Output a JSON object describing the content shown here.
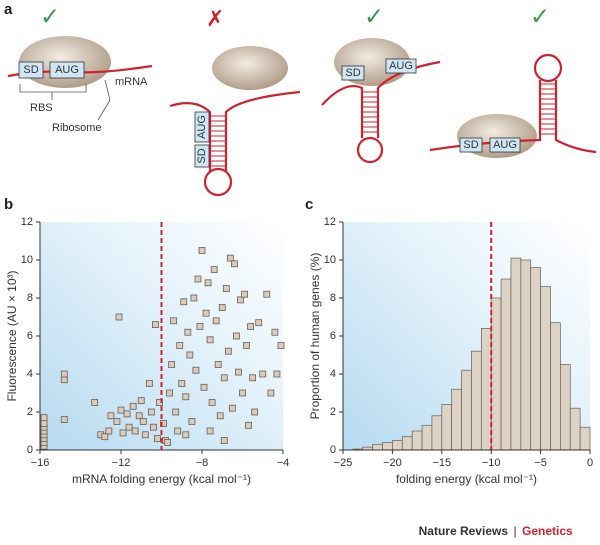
{
  "panel_labels": [
    "a",
    "b",
    "c"
  ],
  "diagram": {
    "marks": [
      "✓",
      "✗",
      "✓",
      "✓"
    ],
    "sd": "SD",
    "aug": "AUG",
    "mrna": "mRNA",
    "rbs": "RBS",
    "ribosome": "Ribosome"
  },
  "chart_data": [
    {
      "type": "scatter",
      "xlabel": "mRNA folding energy (kcal mol⁻¹)",
      "ylabel": "Fluorescence (AU × 10³)",
      "color": "#d8ccbf",
      "xlim": [
        -16,
        -4
      ],
      "xticks": [
        {
          "value": -16,
          "label": "−16"
        },
        {
          "value": -12,
          "label": "−12"
        },
        {
          "value": -8,
          "label": "−8"
        },
        {
          "value": -4,
          "label": "−4"
        }
      ],
      "ylim": [
        0,
        12
      ],
      "yticks": [
        0,
        2,
        4,
        6,
        8,
        10,
        12
      ],
      "vline": -10,
      "x": [
        -15.8,
        -15.8,
        -15.8,
        -15.8,
        -15.8,
        -15.8,
        -15.8,
        -15.8,
        -14.8,
        -14.8,
        -14.8,
        -13.3,
        -13,
        -12.8,
        -12.6,
        -12.5,
        -12.2,
        -12.1,
        -12,
        -11.9,
        -11.7,
        -11.6,
        -11.4,
        -11.3,
        -11.1,
        -11,
        -10.9,
        -10.8,
        -10.6,
        -10.5,
        -10.4,
        -10.3,
        -10.2,
        -10.1,
        -9.9,
        -9.8,
        -9.7,
        -9.6,
        -9.5,
        -9.4,
        -9.3,
        -9.2,
        -9.1,
        -9.0,
        -8.9,
        -8.8,
        -8.7,
        -8.6,
        -8.5,
        -8.4,
        -8.3,
        -8.2,
        -8.1,
        -8.0,
        -7.9,
        -7.8,
        -7.7,
        -7.6,
        -7.5,
        -7.4,
        -7.3,
        -7.2,
        -7.1,
        -7.0,
        -6.9,
        -6.8,
        -6.7,
        -6.6,
        -6.5,
        -6.4,
        -6.3,
        -6.2,
        -6.1,
        -6.0,
        -5.9,
        -5.8,
        -5.7,
        -5.6,
        -5.5,
        -5.4,
        -5.2,
        -5.0,
        -4.8,
        -4.6,
        -4.4,
        -4.3,
        -4.1,
        -6.9,
        -7.6,
        -8.8
      ],
      "values": [
        0.2,
        0.4,
        0.6,
        0.8,
        1.0,
        1.2,
        1.4,
        1.7,
        3.7,
        4.0,
        1.6,
        2.5,
        0.8,
        0.7,
        1.0,
        1.8,
        1.5,
        7.0,
        2.1,
        0.9,
        1.9,
        1.2,
        2.3,
        1.0,
        1.8,
        2.6,
        1.5,
        0.8,
        3.5,
        2.0,
        1.2,
        6.6,
        0.6,
        2.5,
        1.4,
        0.5,
        0.4,
        3.0,
        4.5,
        6.8,
        2.0,
        1.0,
        5.5,
        3.5,
        7.8,
        2.8,
        6.2,
        5.0,
        1.5,
        8.0,
        4.2,
        9.0,
        6.5,
        10.5,
        3.3,
        7.2,
        8.8,
        5.8,
        2.5,
        9.5,
        6.8,
        4.5,
        1.8,
        7.5,
        3.8,
        8.5,
        5.2,
        10.1,
        2.2,
        9.8,
        6.0,
        4.1,
        7.9,
        3.0,
        8.2,
        5.5,
        1.3,
        6.5,
        3.8,
        2.0,
        6.7,
        4.0,
        8.2,
        3.0,
        6.2,
        4.0,
        5.5,
        0.5,
        1.0,
        0.8
      ]
    },
    {
      "type": "histogram",
      "xlabel": "folding energy (kcal mol⁻¹)",
      "ylabel": "Proportion of human genes (%)",
      "color": "#ddd2c6",
      "xlim": [
        -25,
        0
      ],
      "xticks": [
        {
          "value": -25,
          "label": "−25"
        },
        {
          "value": -20,
          "label": "−20"
        },
        {
          "value": -15,
          "label": "−15"
        },
        {
          "value": -10,
          "label": "−10"
        },
        {
          "value": -5,
          "label": "−5"
        },
        0
      ],
      "ylim": [
        0,
        12
      ],
      "yticks": [
        0,
        2,
        4,
        6,
        8,
        10,
        12
      ],
      "vline": -10,
      "bins": [
        -24,
        -23,
        -22,
        -21,
        -20,
        -19,
        -18,
        -17,
        -16,
        -15,
        -14,
        -13,
        -12,
        -11,
        -10,
        -9,
        -8,
        -7,
        -6,
        -5,
        -4,
        -3,
        -2,
        -1,
        0
      ],
      "counts": [
        0.05,
        0.15,
        0.3,
        0.4,
        0.5,
        0.7,
        1.0,
        1.3,
        1.8,
        2.4,
        3.2,
        4.2,
        5.2,
        6.4,
        8.0,
        9.0,
        10.1,
        10.0,
        9.6,
        8.6,
        6.7,
        4.5,
        2.2,
        1.2
      ]
    }
  ],
  "footer": {
    "journal": "Nature Reviews",
    "separator": "|",
    "section": "Genetics"
  }
}
